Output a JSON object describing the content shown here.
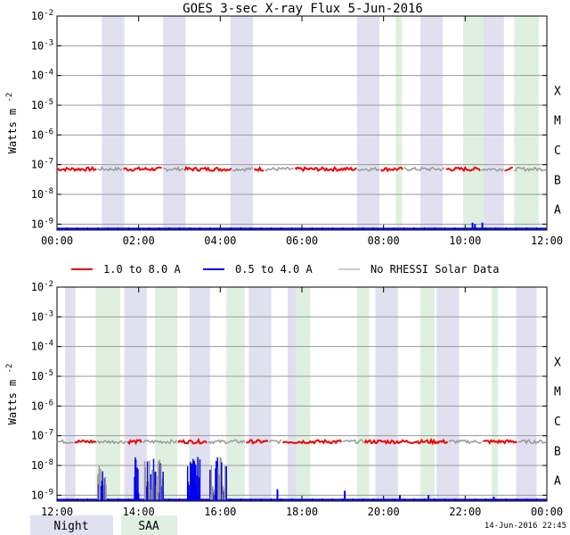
{
  "chart_data": {
    "type": "line",
    "title": "GOES 3-sec X-ray Flux    5-Jun-2016",
    "ylabel": "Watts m",
    "ylabel_sup": "-2",
    "yscale": "log",
    "ylim_exp": [
      -9.2,
      -2
    ],
    "y_exponents": [
      -2,
      -3,
      -4,
      -5,
      -6,
      -7,
      -8,
      -9
    ],
    "y_tick_base": "10",
    "class_labels": [
      {
        "label": "X",
        "exp": -4.5
      },
      {
        "label": "M",
        "exp": -5.5
      },
      {
        "label": "C",
        "exp": -6.5
      },
      {
        "label": "B",
        "exp": -7.5
      },
      {
        "label": "A",
        "exp": -8.5
      }
    ],
    "legend": [
      {
        "label": "1.0 to 8.0 A",
        "color": "#ee0000"
      },
      {
        "label": "0.5 to 4.0 A",
        "color": "#0000ee"
      },
      {
        "label": "No RHESSI Solar Data",
        "color": "#999999"
      }
    ],
    "panels": [
      {
        "time_range_h": [
          0,
          12
        ],
        "xticks": [
          "00:00",
          "02:00",
          "04:00",
          "06:00",
          "08:00",
          "10:00",
          "12:00"
        ],
        "night": [
          [
            1.1,
            1.65
          ],
          [
            2.6,
            3.15
          ],
          [
            4.25,
            4.8
          ],
          [
            7.35,
            7.9
          ],
          [
            8.9,
            9.45
          ],
          [
            10.45,
            10.95
          ]
        ],
        "saa": [
          [
            8.3,
            8.45
          ],
          [
            9.95,
            10.45
          ],
          [
            11.2,
            11.8
          ]
        ],
        "long_flux_exp": -7.15,
        "gray_segments_h": [
          [
            1.0,
            1.6
          ],
          [
            2.6,
            3.1
          ],
          [
            4.3,
            4.8
          ],
          [
            5.1,
            5.8
          ],
          [
            7.35,
            7.9
          ],
          [
            8.5,
            9.5
          ],
          [
            10.4,
            10.95
          ],
          [
            11.2,
            12.0
          ]
        ],
        "short_spikes": [
          {
            "t": 10.18,
            "exp": -8.95
          },
          {
            "t": 10.24,
            "exp": -9.0
          },
          {
            "t": 10.42,
            "exp": -8.95
          }
        ]
      },
      {
        "time_range_h": [
          12,
          24
        ],
        "xticks": [
          "12:00",
          "14:00",
          "16:00",
          "18:00",
          "20:00",
          "22:00",
          "00:00"
        ],
        "night": [
          [
            12.2,
            12.45
          ],
          [
            13.65,
            14.2
          ],
          [
            15.25,
            15.75
          ],
          [
            16.7,
            17.25
          ],
          [
            17.65,
            18.2
          ],
          [
            19.8,
            20.35
          ],
          [
            21.3,
            21.85
          ],
          [
            23.25,
            23.75
          ]
        ],
        "saa": [
          [
            12.95,
            13.55
          ],
          [
            14.4,
            14.95
          ],
          [
            16.15,
            16.6
          ],
          [
            17.85,
            18.2
          ],
          [
            19.35,
            19.65
          ],
          [
            20.9,
            21.25
          ],
          [
            22.65,
            22.8
          ]
        ],
        "long_flux_exp": -7.2,
        "gray_segments_h": [
          [
            12.0,
            12.4
          ],
          [
            13.0,
            13.7
          ],
          [
            14.1,
            14.95
          ],
          [
            15.7,
            16.6
          ],
          [
            17.2,
            17.5
          ],
          [
            19.0,
            19.5
          ],
          [
            21.6,
            22.4
          ],
          [
            23.3,
            24.0
          ]
        ],
        "short_bursts": [
          [
            13.0,
            13.2
          ],
          [
            13.9,
            14.0
          ],
          [
            14.15,
            14.6
          ],
          [
            15.2,
            15.5
          ],
          [
            15.75,
            16.15
          ]
        ],
        "short_spikes": [
          {
            "t": 17.4,
            "exp": -8.8
          },
          {
            "t": 19.05,
            "exp": -8.85
          },
          {
            "t": 20.4,
            "exp": -9.0
          },
          {
            "t": 21.1,
            "exp": -9.0
          },
          {
            "t": 22.7,
            "exp": -9.05
          }
        ]
      }
    ],
    "footer": {
      "night_label": "Night",
      "saa_label": "SAA",
      "night_color": "#e0e0f0",
      "saa_color": "#e0f0e0",
      "timestamp": "14-Jun-2016 22:45"
    }
  }
}
